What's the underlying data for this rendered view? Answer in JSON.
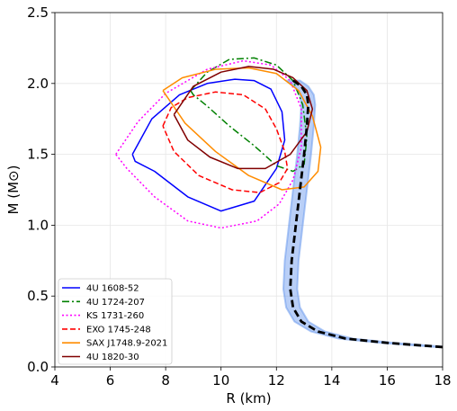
{
  "chart_data": {
    "type": "line",
    "xlabel": "R (km)",
    "ylabel": "M (M⊙)",
    "xlim": [
      4,
      18
    ],
    "ylim": [
      0.0,
      2.5
    ],
    "xticks": [
      "4",
      "6",
      "8",
      "10",
      "12",
      "14",
      "16",
      "18"
    ],
    "yticks": [
      "0.0",
      "0.5",
      "1.0",
      "1.5",
      "2.0",
      "2.5"
    ],
    "grid": true,
    "legend_position": "lower-left",
    "band": {
      "color": "#6495ed",
      "x": [
        18.0,
        16.0,
        14.5,
        13.5,
        12.9,
        12.6,
        12.5,
        12.55,
        12.7,
        12.85,
        13.0,
        13.1,
        13.15,
        13.1,
        12.9,
        12.6
      ],
      "y": [
        0.14,
        0.17,
        0.2,
        0.25,
        0.32,
        0.42,
        0.55,
        0.75,
        1.0,
        1.25,
        1.5,
        1.7,
        1.85,
        1.92,
        1.98,
        2.02
      ],
      "half_width": 0.25
    },
    "central_curve": {
      "color": "#000000",
      "style": "dashed",
      "x": [
        18.0,
        16.0,
        14.5,
        13.5,
        12.9,
        12.6,
        12.5,
        12.55,
        12.7,
        12.85,
        13.0,
        13.1,
        13.15,
        13.1,
        12.9,
        12.6
      ],
      "y": [
        0.14,
        0.17,
        0.2,
        0.25,
        0.32,
        0.42,
        0.55,
        0.75,
        1.0,
        1.25,
        1.5,
        1.7,
        1.85,
        1.92,
        1.98,
        2.02
      ]
    },
    "series": [
      {
        "name": "4U 1608-52",
        "color": "#0000ff",
        "style": "solid",
        "x": [
          6.8,
          7.5,
          8.5,
          9.5,
          10.5,
          11.2,
          11.8,
          12.2,
          12.3,
          12.0,
          11.2,
          10.0,
          8.8,
          7.6,
          6.9,
          6.8
        ],
        "y": [
          1.5,
          1.75,
          1.92,
          2.0,
          2.03,
          2.02,
          1.96,
          1.8,
          1.6,
          1.4,
          1.17,
          1.1,
          1.2,
          1.38,
          1.45,
          1.5
        ]
      },
      {
        "name": "4U 1724-207",
        "color": "#008000",
        "style": "dashdot",
        "x": [
          8.9,
          9.5,
          10.3,
          11.2,
          12.0,
          12.6,
          12.95,
          13.1,
          13.0,
          12.6,
          12.0,
          11.2,
          10.3,
          9.5,
          9.0,
          8.9
        ],
        "y": [
          1.95,
          2.08,
          2.17,
          2.18,
          2.13,
          2.02,
          1.85,
          1.62,
          1.43,
          1.38,
          1.42,
          1.56,
          1.7,
          1.84,
          1.92,
          1.95
        ]
      },
      {
        "name": "KS 1731-260",
        "color": "#ff00ff",
        "style": "dotted",
        "x": [
          6.2,
          7.0,
          8.0,
          9.5,
          10.8,
          11.8,
          12.5,
          12.9,
          12.9,
          12.6,
          12.1,
          11.3,
          10.0,
          8.8,
          7.6,
          6.6,
          6.2
        ],
        "y": [
          1.5,
          1.73,
          1.93,
          2.1,
          2.16,
          2.13,
          2.02,
          1.82,
          1.55,
          1.32,
          1.15,
          1.03,
          0.98,
          1.03,
          1.2,
          1.4,
          1.5
        ]
      },
      {
        "name": "EXO 1745-248",
        "color": "#ff0000",
        "style": "dashed",
        "x": [
          7.9,
          8.2,
          8.8,
          9.8,
          10.8,
          11.6,
          12.0,
          12.3,
          12.4,
          12.1,
          11.4,
          10.4,
          9.2,
          8.3,
          7.9
        ],
        "y": [
          1.7,
          1.83,
          1.9,
          1.94,
          1.92,
          1.82,
          1.68,
          1.52,
          1.4,
          1.3,
          1.23,
          1.25,
          1.35,
          1.52,
          1.7
        ]
      },
      {
        "name": "SAX J1748.9-2021",
        "color": "#ff8c00",
        "style": "solid",
        "x": [
          7.9,
          8.6,
          9.8,
          11.0,
          12.0,
          12.8,
          13.3,
          13.6,
          13.5,
          13.0,
          12.2,
          11.0,
          9.8,
          8.7,
          7.9
        ],
        "y": [
          1.95,
          2.04,
          2.1,
          2.11,
          2.07,
          1.95,
          1.77,
          1.55,
          1.38,
          1.27,
          1.25,
          1.35,
          1.52,
          1.72,
          1.95
        ]
      },
      {
        "name": "4U 1820-30",
        "color": "#800000",
        "style": "solid",
        "x": [
          8.3,
          9.0,
          10.0,
          11.0,
          11.9,
          12.6,
          13.1,
          13.3,
          13.1,
          12.5,
          11.6,
          10.6,
          9.6,
          8.8,
          8.3
        ],
        "y": [
          1.78,
          1.98,
          2.08,
          2.12,
          2.1,
          2.04,
          1.95,
          1.82,
          1.66,
          1.5,
          1.4,
          1.4,
          1.48,
          1.6,
          1.78
        ]
      }
    ]
  }
}
